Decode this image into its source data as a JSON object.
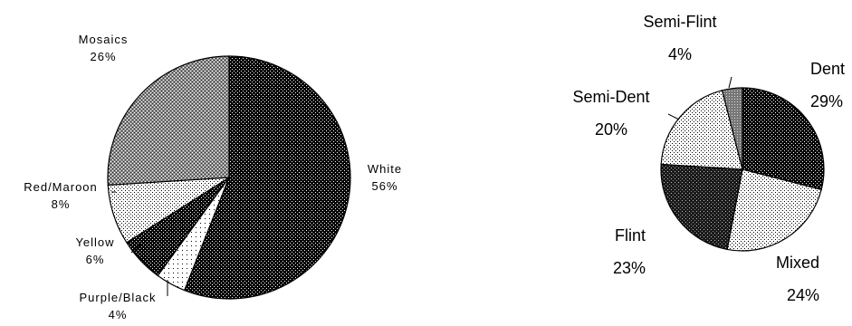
{
  "chart_data": [
    {
      "type": "pie",
      "title": "",
      "slices": [
        {
          "label": "White",
          "value": 56,
          "value_label": "56%",
          "pattern": "dense-dots"
        },
        {
          "label": "Purple/Black",
          "value": 4,
          "value_label": "4%",
          "pattern": "sparse-dots"
        },
        {
          "label": "Yellow",
          "value": 6,
          "value_label": "6%",
          "pattern": "dense-dots"
        },
        {
          "label": "Red/Maroon",
          "value": 8,
          "value_label": "8%",
          "pattern": "light-dots"
        },
        {
          "label": "Mosaics",
          "value": 26,
          "value_label": "26%",
          "pattern": "crosshatch-grey"
        }
      ]
    },
    {
      "type": "pie",
      "title": "",
      "slices": [
        {
          "label": "Dent",
          "value": 29,
          "value_label": "29%",
          "pattern": "dense-dots"
        },
        {
          "label": "Mixed",
          "value": 24,
          "value_label": "24%",
          "pattern": "light-dots"
        },
        {
          "label": "Flint",
          "value": 23,
          "value_label": "23%",
          "pattern": "dark-grid"
        },
        {
          "label": "Semi-Dent",
          "value": 20,
          "value_label": "20%",
          "pattern": "light-dots"
        },
        {
          "label": "Semi-Flint",
          "value": 4,
          "value_label": "4%",
          "pattern": "grey-dots"
        }
      ]
    }
  ]
}
